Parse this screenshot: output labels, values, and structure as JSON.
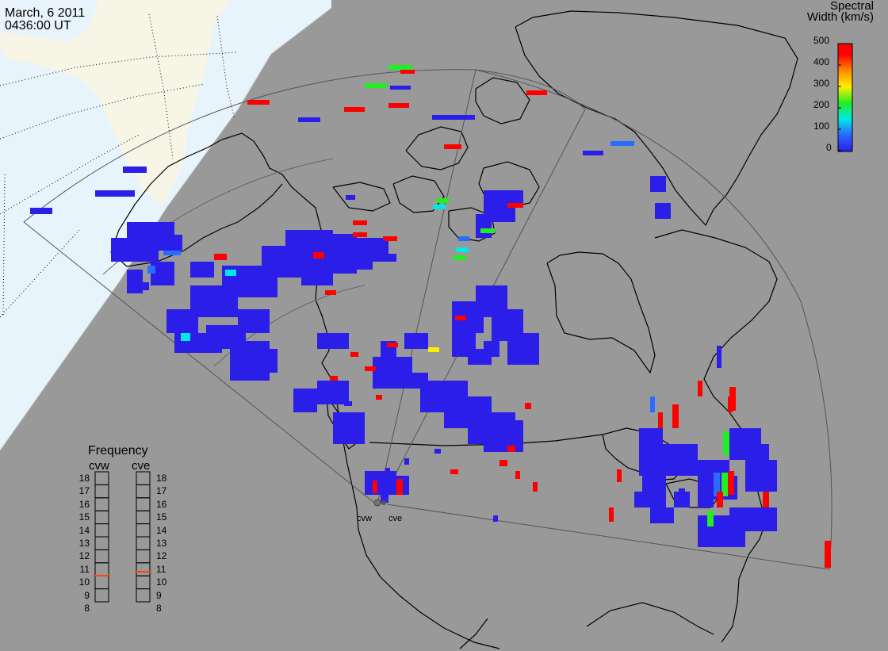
{
  "header": {
    "date": "March, 6 2011",
    "time": "0436:00 UT"
  },
  "colorbar": {
    "title_line1": "Spectral",
    "title_line2": "Width (km/s)",
    "ticks": [
      "500",
      "400",
      "300",
      "200",
      "100",
      "0"
    ],
    "colors": [
      "#ff0000",
      "#ff8800",
      "#ffee00",
      "#22ee22",
      "#00e8e8",
      "#2a6cff",
      "#2a1ee8"
    ]
  },
  "frequency": {
    "title": "Frequency",
    "columns": [
      "cvw",
      "cve"
    ],
    "ticks": [
      "18",
      "17",
      "16",
      "15",
      "14",
      "13",
      "12",
      "11",
      "10",
      "9",
      "8"
    ],
    "cvw_mhz": 10.5,
    "cve_mhz": 10.8,
    "marker_color": "#ff4400"
  },
  "radar_sites": [
    "cvw",
    "cve"
  ],
  "map_colors": {
    "night": "#999999",
    "ocean_day": "#e8f4fb",
    "land_day": "#f6f5e6",
    "scatter": "#2a1ee8"
  }
}
